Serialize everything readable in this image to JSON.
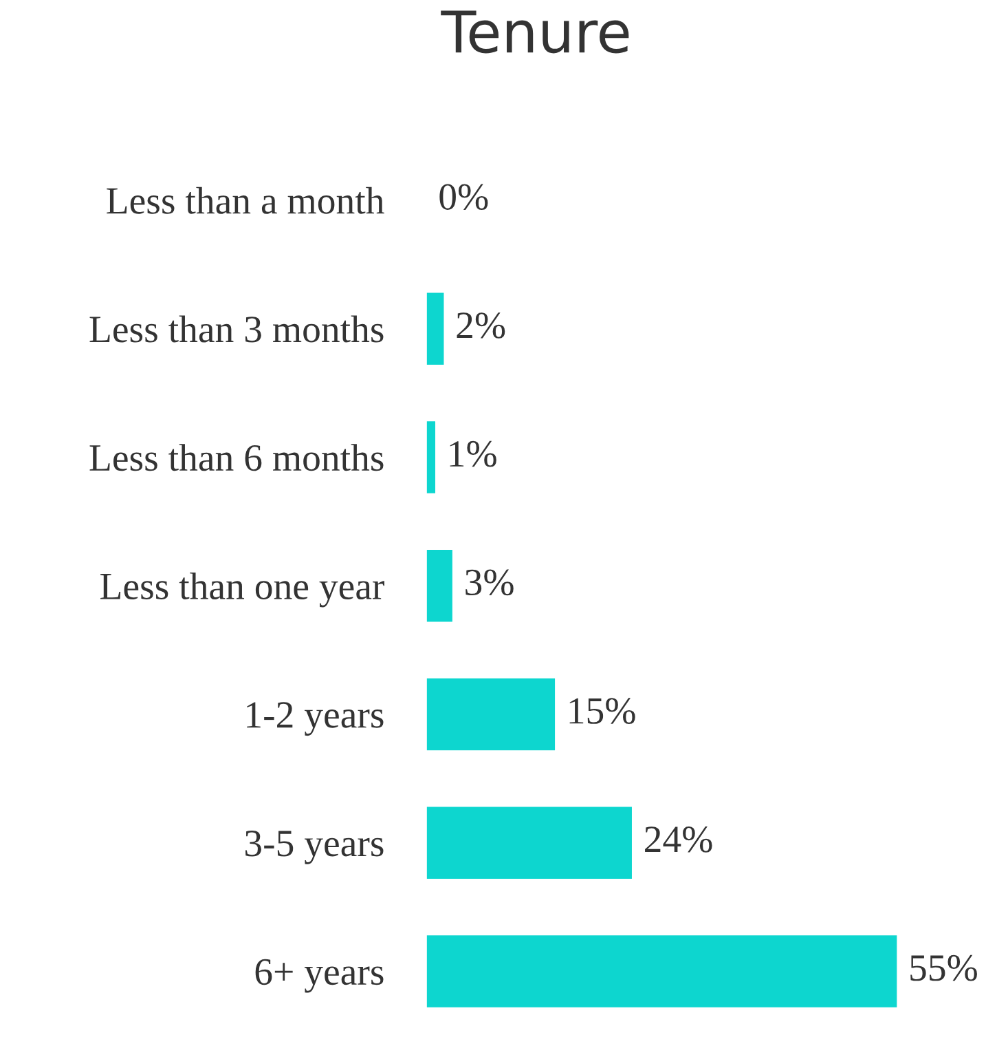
{
  "chart_data": {
    "type": "bar",
    "title": "Tenure",
    "orientation": "horizontal",
    "categories": [
      "Less than a month",
      "Less than 3 months",
      "Less than 6 months",
      "Less than one year",
      "1-2 years",
      "3-5 years",
      "6+ years"
    ],
    "values": [
      0,
      2,
      1,
      3,
      15,
      24,
      55
    ],
    "value_labels": [
      "0%",
      "2%",
      "1%",
      "3%",
      "15%",
      "24%",
      "55%"
    ],
    "color": "#0dd6cf"
  }
}
